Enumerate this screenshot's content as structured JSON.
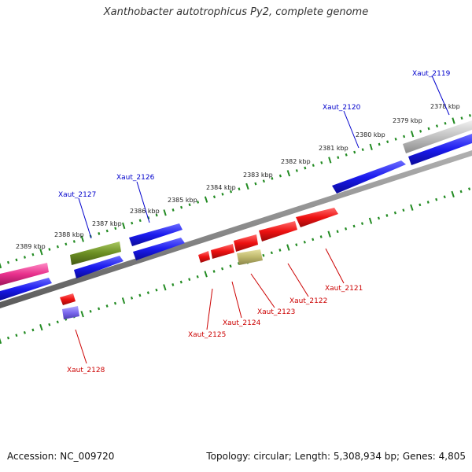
{
  "title": "Xanthobacter autotrophicus Py2, complete genome",
  "footer": {
    "accession": "Accession: NC_009720",
    "summary": "Topology: circular; Length: 5,308,934 bp; Genes: 4,805"
  },
  "colors": {
    "forward_gene": "#1a1aee",
    "reverse_gene": "#ee1111",
    "backbone": "#8a8a8a",
    "tick": "#228b22",
    "label_forward": "#0000cc",
    "label_reverse": "#cc0000",
    "pink_feature": "#e8308c",
    "olive_feature": "#6b8e23",
    "silver_feature": "#c0c0c0",
    "khaki_feature": "#bdb76b",
    "purple_feature": "#7b68ee"
  },
  "scale": {
    "unit": "kbp",
    "positions": [
      "2378 kbp",
      "2379 kbp",
      "2380 kbp",
      "2381 kbp",
      "2382 kbp",
      "2383 kbp",
      "2384 kbp",
      "2385 kbp",
      "2386 kbp",
      "2387 kbp",
      "2388 kbp",
      "2389 kbp"
    ]
  },
  "genes": {
    "forward": [
      "Xaut_2119",
      "Xaut_2120",
      "Xaut_2126",
      "Xaut_2127"
    ],
    "reverse": [
      "Xaut_2121",
      "Xaut_2122",
      "Xaut_2123",
      "Xaut_2124",
      "Xaut_2125",
      "Xaut_2128"
    ]
  }
}
